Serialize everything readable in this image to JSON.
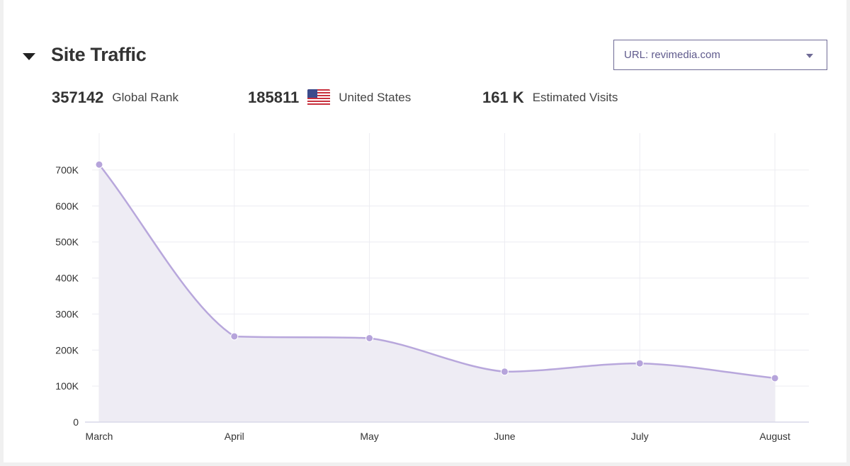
{
  "section": {
    "title": "Site Traffic",
    "url_select": {
      "value": "URL: revimedia.com"
    }
  },
  "stats": [
    {
      "value": "357142",
      "label": "Global Rank"
    },
    {
      "value": "185811",
      "label": "United States",
      "flag": "us-flag-icon"
    },
    {
      "value": "161 K",
      "label": "Estimated Visits"
    }
  ],
  "colors": {
    "line": "#b8a7dc",
    "fill": "#eeecf4",
    "point": "#b6a4db",
    "grid": "#ececf2",
    "axis": "#d9d9e8",
    "accent_text": "#5f5a8c"
  },
  "chart_data": {
    "type": "area",
    "categories": [
      "March",
      "April",
      "May",
      "June",
      "July",
      "August"
    ],
    "series": [
      {
        "values": [
          715000,
          238000,
          233000,
          140000,
          163000,
          122000
        ]
      }
    ],
    "ylim": [
      0,
      800000
    ],
    "yticks": [
      0,
      100000,
      200000,
      300000,
      400000,
      500000,
      600000,
      700000
    ],
    "ytick_labels": [
      "0",
      "100K",
      "200K",
      "300K",
      "400K",
      "500K",
      "600K",
      "700K"
    ],
    "grid": true,
    "legend": "none"
  }
}
